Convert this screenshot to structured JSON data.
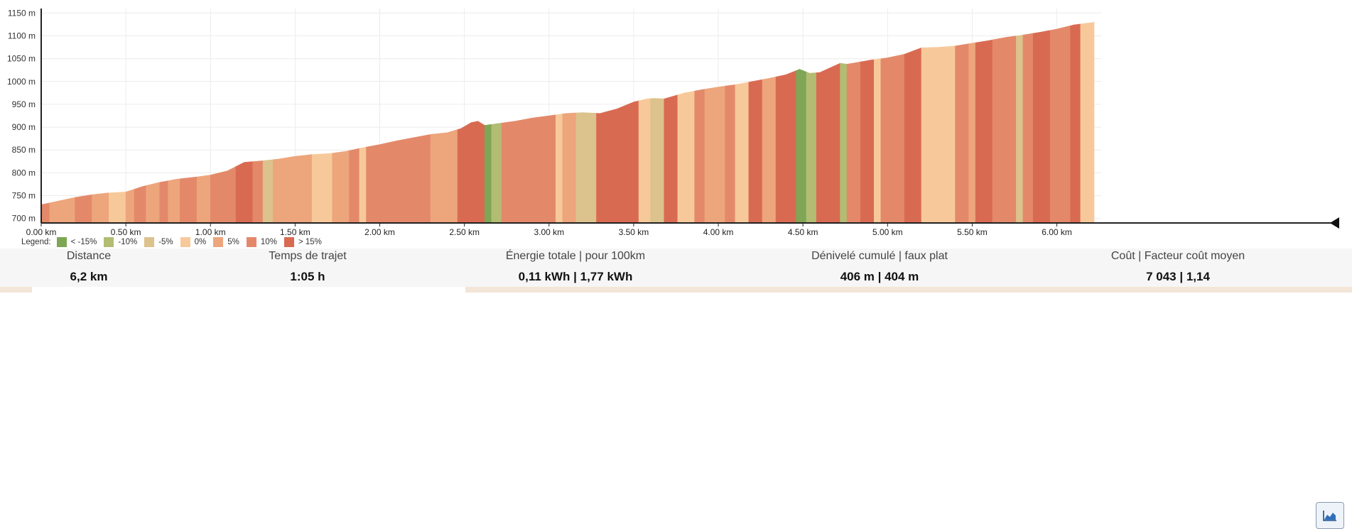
{
  "chart_data": {
    "type": "area",
    "xlabel": "",
    "ylabel": "",
    "x_unit": "km",
    "y_unit": "m",
    "xlim": [
      0,
      6.22
    ],
    "ylim": [
      690,
      1160
    ],
    "x_ticks": [
      "0.00 km",
      "0.50 km",
      "1.00 km",
      "1.50 km",
      "2.00 km",
      "2.50 km",
      "3.00 km",
      "3.50 km",
      "4.00 km",
      "4.50 km",
      "5.00 km",
      "5.50 km",
      "6.00 km"
    ],
    "y_ticks": [
      "700 m",
      "750 m",
      "800 m",
      "850 m",
      "900 m",
      "950 m",
      "1000 m",
      "1050 m",
      "1100 m",
      "1150 m"
    ],
    "grid": true,
    "profile": [
      [
        0.0,
        730
      ],
      [
        0.1,
        738
      ],
      [
        0.2,
        746
      ],
      [
        0.3,
        752
      ],
      [
        0.4,
        756
      ],
      [
        0.5,
        758
      ],
      [
        0.6,
        770
      ],
      [
        0.7,
        779
      ],
      [
        0.8,
        786
      ],
      [
        0.9,
        790
      ],
      [
        1.0,
        795
      ],
      [
        1.1,
        804
      ],
      [
        1.2,
        823
      ],
      [
        1.3,
        826
      ],
      [
        1.4,
        830
      ],
      [
        1.5,
        836
      ],
      [
        1.6,
        840
      ],
      [
        1.7,
        842
      ],
      [
        1.8,
        847
      ],
      [
        1.9,
        855
      ],
      [
        2.0,
        862
      ],
      [
        2.1,
        870
      ],
      [
        2.2,
        877
      ],
      [
        2.3,
        884
      ],
      [
        2.4,
        888
      ],
      [
        2.48,
        897
      ],
      [
        2.54,
        910
      ],
      [
        2.58,
        913
      ],
      [
        2.62,
        904
      ],
      [
        2.7,
        908
      ],
      [
        2.8,
        913
      ],
      [
        2.9,
        920
      ],
      [
        3.0,
        925
      ],
      [
        3.1,
        930
      ],
      [
        3.2,
        932
      ],
      [
        3.3,
        930
      ],
      [
        3.4,
        940
      ],
      [
        3.5,
        955
      ],
      [
        3.58,
        962
      ],
      [
        3.62,
        963
      ],
      [
        3.68,
        962
      ],
      [
        3.8,
        975
      ],
      [
        3.9,
        982
      ],
      [
        4.0,
        988
      ],
      [
        4.1,
        993
      ],
      [
        4.2,
        1000
      ],
      [
        4.3,
        1007
      ],
      [
        4.4,
        1015
      ],
      [
        4.48,
        1027
      ],
      [
        4.54,
        1018
      ],
      [
        4.6,
        1020
      ],
      [
        4.66,
        1030
      ],
      [
        4.72,
        1040
      ],
      [
        4.76,
        1038
      ],
      [
        4.9,
        1047
      ],
      [
        5.0,
        1052
      ],
      [
        5.1,
        1060
      ],
      [
        5.2,
        1074
      ],
      [
        5.3,
        1075
      ],
      [
        5.4,
        1078
      ],
      [
        5.5,
        1084
      ],
      [
        5.6,
        1090
      ],
      [
        5.7,
        1097
      ],
      [
        5.8,
        1102
      ],
      [
        5.9,
        1108
      ],
      [
        6.0,
        1115
      ],
      [
        6.1,
        1124
      ],
      [
        6.22,
        1130
      ]
    ],
    "segments": [
      [
        0.0,
        0.05,
        "10"
      ],
      [
        0.05,
        0.2,
        "5"
      ],
      [
        0.2,
        0.3,
        "10"
      ],
      [
        0.3,
        0.4,
        "5"
      ],
      [
        0.4,
        0.5,
        "0"
      ],
      [
        0.5,
        0.55,
        "5"
      ],
      [
        0.55,
        0.62,
        "10"
      ],
      [
        0.62,
        0.7,
        "5"
      ],
      [
        0.7,
        0.75,
        "10"
      ],
      [
        0.75,
        0.82,
        "5"
      ],
      [
        0.82,
        0.92,
        "10"
      ],
      [
        0.92,
        1.0,
        "5"
      ],
      [
        1.0,
        1.15,
        "10"
      ],
      [
        1.15,
        1.25,
        "15"
      ],
      [
        1.25,
        1.31,
        "10"
      ],
      [
        1.31,
        1.37,
        "-5"
      ],
      [
        1.37,
        1.6,
        "5"
      ],
      [
        1.6,
        1.72,
        "0"
      ],
      [
        1.72,
        1.82,
        "5"
      ],
      [
        1.82,
        1.88,
        "10"
      ],
      [
        1.88,
        1.92,
        "0"
      ],
      [
        1.92,
        2.3,
        "10"
      ],
      [
        2.3,
        2.46,
        "5"
      ],
      [
        2.46,
        2.62,
        "15"
      ],
      [
        2.62,
        2.66,
        "-15"
      ],
      [
        2.66,
        2.72,
        "-10"
      ],
      [
        2.72,
        3.04,
        "10"
      ],
      [
        3.04,
        3.08,
        "0"
      ],
      [
        3.08,
        3.16,
        "5"
      ],
      [
        3.16,
        3.28,
        "-5"
      ],
      [
        3.28,
        3.53,
        "15"
      ],
      [
        3.53,
        3.6,
        "0"
      ],
      [
        3.6,
        3.68,
        "-5"
      ],
      [
        3.68,
        3.76,
        "15"
      ],
      [
        3.76,
        3.86,
        "0"
      ],
      [
        3.86,
        3.92,
        "10"
      ],
      [
        3.92,
        4.04,
        "5"
      ],
      [
        4.04,
        4.1,
        "10"
      ],
      [
        4.1,
        4.18,
        "0"
      ],
      [
        4.18,
        4.26,
        "15"
      ],
      [
        4.26,
        4.34,
        "5"
      ],
      [
        4.34,
        4.46,
        "15"
      ],
      [
        4.46,
        4.52,
        "-15"
      ],
      [
        4.52,
        4.58,
        "-10"
      ],
      [
        4.58,
        4.72,
        "15"
      ],
      [
        4.72,
        4.76,
        "-10"
      ],
      [
        4.76,
        4.84,
        "10"
      ],
      [
        4.84,
        4.92,
        "15"
      ],
      [
        4.92,
        4.96,
        "0"
      ],
      [
        4.96,
        5.1,
        "10"
      ],
      [
        5.1,
        5.2,
        "15"
      ],
      [
        5.2,
        5.4,
        "0"
      ],
      [
        5.4,
        5.48,
        "10"
      ],
      [
        5.48,
        5.52,
        "5"
      ],
      [
        5.52,
        5.62,
        "15"
      ],
      [
        5.62,
        5.76,
        "10"
      ],
      [
        5.76,
        5.8,
        "-5"
      ],
      [
        5.8,
        5.86,
        "10"
      ],
      [
        5.86,
        5.96,
        "15"
      ],
      [
        5.96,
        6.08,
        "10"
      ],
      [
        6.08,
        6.14,
        "15"
      ],
      [
        6.14,
        6.22,
        "0"
      ]
    ],
    "legend_title": "Legend:",
    "legend": [
      {
        "key": "-15",
        "label": "< -15%",
        "color": "#7ea654"
      },
      {
        "key": "-10",
        "label": "-10%",
        "color": "#b2bc72"
      },
      {
        "key": "-5",
        "label": "-5%",
        "color": "#dcc28c"
      },
      {
        "key": "0",
        "label": "0%",
        "color": "#f7c99a"
      },
      {
        "key": "5",
        "label": "5%",
        "color": "#eda57c"
      },
      {
        "key": "10",
        "label": "10%",
        "color": "#e3896a"
      },
      {
        "key": "15",
        "label": "> 15%",
        "color": "#d96a52"
      }
    ]
  },
  "stats": {
    "distance": {
      "label": "Distance",
      "value": "6,2 km"
    },
    "time": {
      "label": "Temps de trajet",
      "value": "1:05 h"
    },
    "energy": {
      "label": "Énergie totale | pour 100km",
      "value": "0,11 kWh | 1,77 kWh"
    },
    "elevation": {
      "label": "Dénivelé cumulé | faux plat",
      "value": "406 m | 404 m"
    },
    "cost": {
      "label": "Coût | Facteur coût moyen",
      "value": "7 043 | 1,14"
    }
  },
  "chart_toggle_icon": "area-chart-icon"
}
